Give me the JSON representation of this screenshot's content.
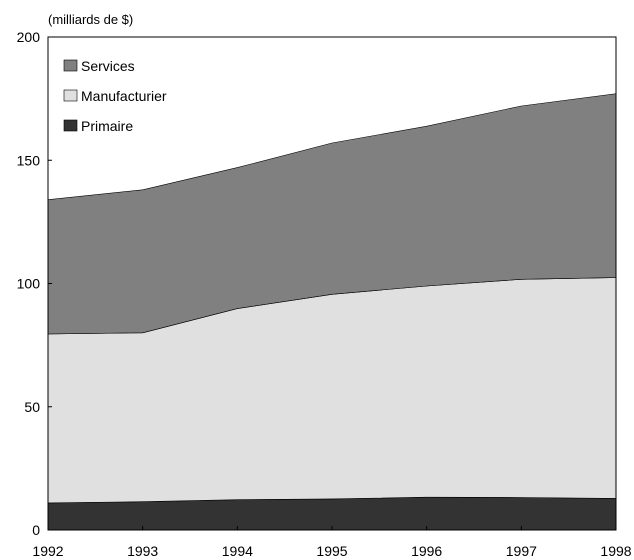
{
  "chart_data": {
    "type": "area",
    "stacked": true,
    "unit_label": "(milliards de $)",
    "x": [
      "1992",
      "1993",
      "1994",
      "1995",
      "1996",
      "1997",
      "1998"
    ],
    "ylim": [
      0,
      200
    ],
    "yticks": [
      "0",
      "50",
      "100",
      "150",
      "200"
    ],
    "grid": false,
    "legend_position": "top-left",
    "series": [
      {
        "name": "Primaire",
        "values": [
          11,
          11.5,
          12.3,
          12.6,
          13.3,
          13.2,
          12.8
        ],
        "color": "#333333"
      },
      {
        "name": "Manufacturier",
        "values": [
          68.5,
          68.5,
          77.5,
          83,
          85.7,
          88.5,
          89.6
        ],
        "color": "#e0e0e0"
      },
      {
        "name": "Services",
        "values": [
          54.5,
          58,
          57.2,
          61.4,
          64.8,
          70.3,
          74.6
        ],
        "color": "#808080"
      }
    ],
    "legend_order": [
      "Services",
      "Manufacturier",
      "Primaire"
    ]
  }
}
